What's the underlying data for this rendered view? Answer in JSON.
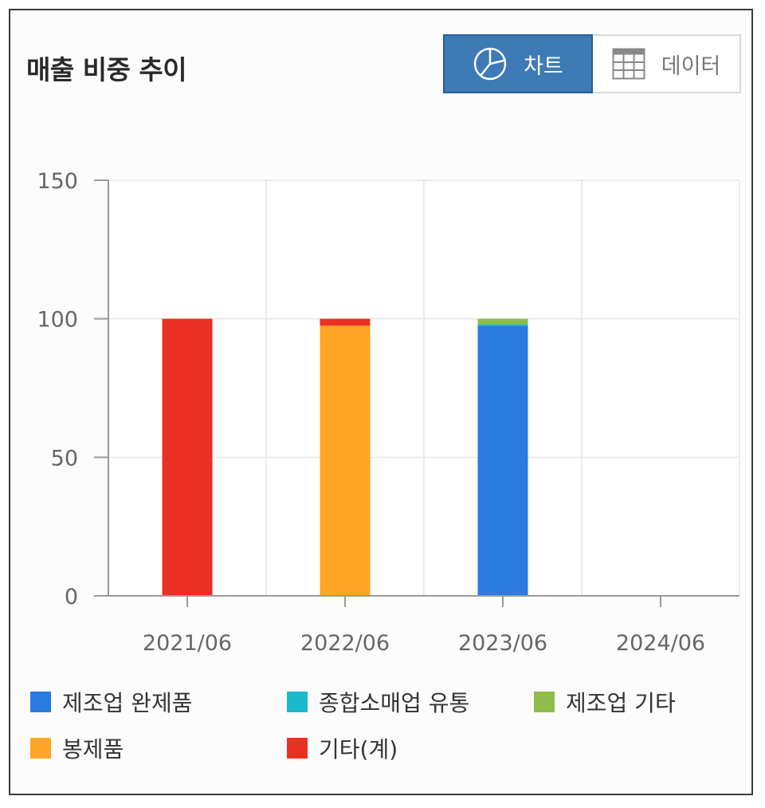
{
  "header": {
    "title": "매출 비중 추이"
  },
  "toggle": {
    "chart_label": "차트",
    "data_label": "데이터"
  },
  "icons": {
    "chart": "pie-chart-icon",
    "data": "table-grid-icon"
  },
  "colors": {
    "제조업 완제품": "#2a7ae0",
    "종합소매업 유통": "#1bb9c9",
    "제조업 기타": "#8fbc4a",
    "봉제품": "#ffa425",
    "기타(계)": "#e93022"
  },
  "chart_data": {
    "type": "bar",
    "stacked": true,
    "categories": [
      "2021/06",
      "2022/06",
      "2023/06",
      "2024/06"
    ],
    "series": [
      {
        "name": "제조업 완제품",
        "values": [
          0,
          0,
          97.5,
          0
        ]
      },
      {
        "name": "종합소매업 유통",
        "values": [
          0,
          0,
          0.5,
          0
        ]
      },
      {
        "name": "제조업 기타",
        "values": [
          0,
          0,
          2,
          0
        ]
      },
      {
        "name": "봉제품",
        "values": [
          0,
          97.5,
          0,
          0
        ]
      },
      {
        "name": "기타(계)",
        "values": [
          100,
          2.5,
          0,
          0
        ]
      }
    ],
    "ylim": [
      0,
      150
    ],
    "yticks": [
      0,
      50,
      100,
      150
    ],
    "grid": true,
    "legend": "bottom"
  }
}
